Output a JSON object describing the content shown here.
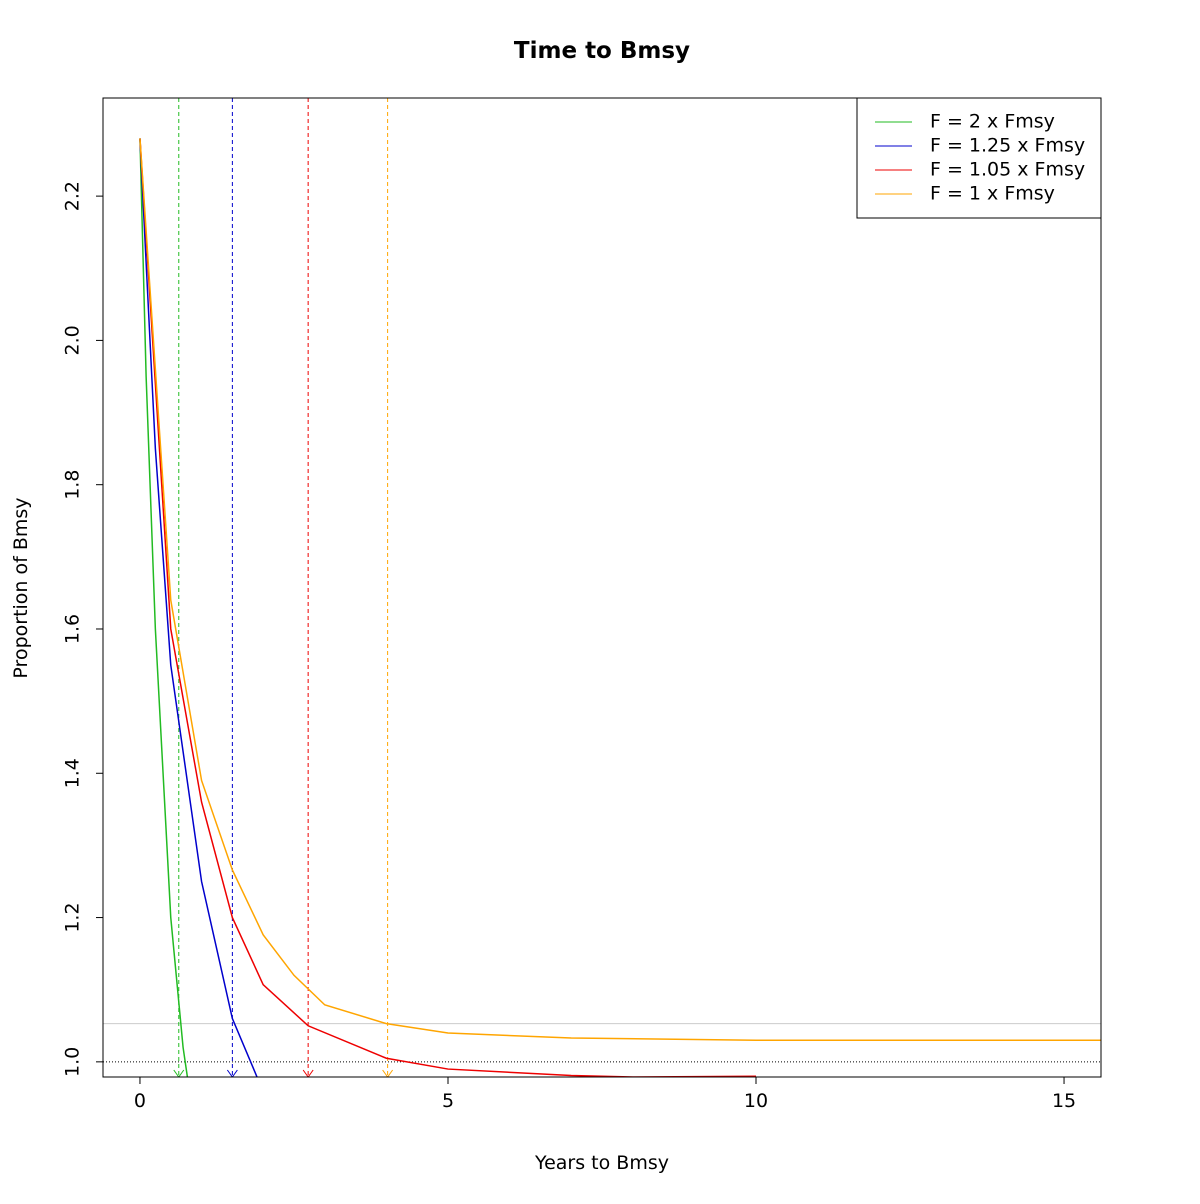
{
  "chart_data": {
    "type": "line",
    "title": "Time to Bmsy",
    "xlabel": "Years to Bmsy",
    "ylabel": "Proportion of Bmsy",
    "xlim": [
      -0.6,
      15.6
    ],
    "ylim": [
      0.979,
      2.336
    ],
    "xticks": [
      0,
      5,
      10,
      15
    ],
    "yticks": [
      {
        "value": 1.0,
        "label": "1.0"
      },
      {
        "value": 1.2,
        "label": "1.2"
      },
      {
        "value": 1.4,
        "label": "1.4"
      },
      {
        "value": 1.6,
        "label": "1.6"
      },
      {
        "value": 1.8,
        "label": "1.8"
      },
      {
        "value": 2.0,
        "label": "2.0"
      },
      {
        "value": 2.2,
        "label": "2.2"
      }
    ],
    "legend_position": "topright",
    "series": [
      {
        "name": "F = 2 x Fmsy",
        "color": "#22bb22",
        "x": [
          0,
          0.1,
          0.25,
          0.5,
          0.7,
          0.77
        ],
        "values": [
          2.28,
          1.95,
          1.6,
          1.2,
          1.02,
          0.979
        ]
      },
      {
        "name": "F = 1.25 x Fmsy",
        "color": "#0000cc",
        "x": [
          0,
          0.25,
          0.5,
          1,
          1.5,
          1.9
        ],
        "values": [
          2.28,
          1.85,
          1.55,
          1.25,
          1.06,
          0.979
        ]
      },
      {
        "name": "F = 1.05 x Fmsy",
        "color": "#ee0000",
        "x": [
          0,
          0.5,
          1,
          1.5,
          2,
          2.73,
          4,
          5,
          7,
          8,
          10
        ],
        "values": [
          2.28,
          1.6,
          1.36,
          1.2,
          1.107,
          1.05,
          1.005,
          0.99,
          0.981,
          0.979,
          0.98
        ]
      },
      {
        "name": "F = 1 x Fmsy",
        "color": "#ffa500",
        "x": [
          0,
          0.5,
          1,
          1.5,
          2,
          2.5,
          3,
          4,
          5,
          7,
          10,
          15.6
        ],
        "values": [
          2.28,
          1.64,
          1.39,
          1.266,
          1.176,
          1.12,
          1.079,
          1.053,
          1.04,
          1.033,
          1.03,
          1.03
        ]
      }
    ],
    "vlines": [
      {
        "value": 0.63,
        "color": "#22bb22"
      },
      {
        "value": 1.5,
        "color": "#0000cc"
      },
      {
        "value": 2.73,
        "color": "#ee0000"
      },
      {
        "value": 4.02,
        "color": "#ffa500"
      }
    ],
    "hlines": [
      {
        "value": 1.053,
        "color": "#cccccc",
        "dash": "none"
      },
      {
        "value": 1.0,
        "color": "#000000",
        "dash": "1,2"
      }
    ]
  }
}
